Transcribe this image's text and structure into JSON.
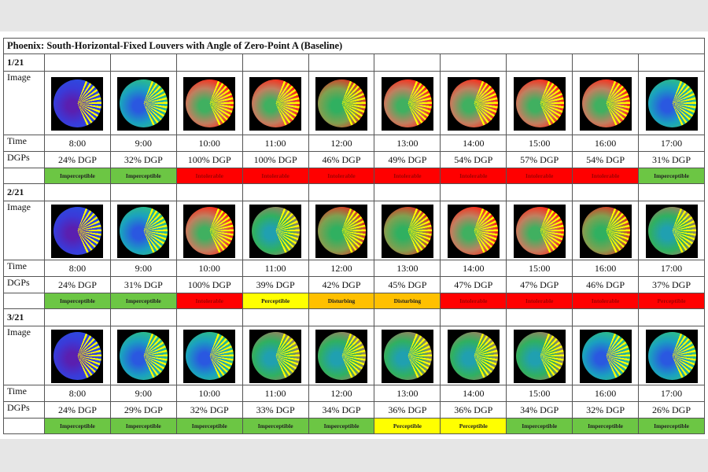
{
  "title": "Phoenix: South-Horizontal-Fixed Louvers with Angle of Zero-Point A (Baseline)",
  "row_labels": {
    "image": "Image",
    "time": "Time",
    "dgps": "DGPs"
  },
  "rating_colors": {
    "Imperceptible": "#6cc644",
    "Perceptible": "#ffff00",
    "Disturbing": "#ffc000",
    "Intolerable": "#ff0000",
    "Perceptible-red": "#ff0000"
  },
  "blocks": [
    {
      "date": "1/21",
      "times": [
        "8:00",
        "9:00",
        "10:00",
        "11:00",
        "12:00",
        "13:00",
        "14:00",
        "15:00",
        "16:00",
        "17:00"
      ],
      "dgps": [
        "24% DGP",
        "32% DGP",
        "100% DGP",
        "100% DGP",
        "46% DGP",
        "49% DGP",
        "54% DGP",
        "57% DGP",
        "54% DGP",
        "31% DGP"
      ],
      "ratings": [
        "Imperceptible",
        "Imperceptible",
        "Intolerable",
        "Intolerable",
        "Intolerable",
        "Intolerable",
        "Intolerable",
        "Intolerable",
        "Intolerable",
        "Imperceptible"
      ],
      "rating_colors": [
        "#6cc644",
        "#6cc644",
        "#ff0000",
        "#ff0000",
        "#ff0000",
        "#ff0000",
        "#ff0000",
        "#ff0000",
        "#ff0000",
        "#6cc644"
      ]
    },
    {
      "date": "2/21",
      "times": [
        "8:00",
        "9:00",
        "10:00",
        "11:00",
        "12:00",
        "13:00",
        "14:00",
        "15:00",
        "16:00",
        "17:00"
      ],
      "dgps": [
        "24% DGP",
        "31% DGP",
        "100% DGP",
        "39% DGP",
        "42% DGP",
        "45% DGP",
        "47% DGP",
        "47% DGP",
        "46% DGP",
        "37% DGP"
      ],
      "ratings": [
        "Imperceptible",
        "Imperceptible",
        "Intolerable",
        "Perceptible",
        "Disturbing",
        "Disturbing",
        "Intolerable",
        "Intolerable",
        "Intolerable",
        "Perceptible"
      ],
      "rating_colors": [
        "#6cc644",
        "#6cc644",
        "#ff0000",
        "#ffff00",
        "#ffc000",
        "#ffc000",
        "#ff0000",
        "#ff0000",
        "#ff0000",
        "#ff0000"
      ]
    },
    {
      "date": "3/21",
      "times": [
        "8:00",
        "9:00",
        "10:00",
        "11:00",
        "12:00",
        "13:00",
        "14:00",
        "15:00",
        "16:00",
        "17:00"
      ],
      "dgps": [
        "24% DGP",
        "29% DGP",
        "32% DGP",
        "33% DGP",
        "34% DGP",
        "36% DGP",
        "36% DGP",
        "34% DGP",
        "32% DGP",
        "26% DGP"
      ],
      "ratings": [
        "Imperceptible",
        "Imperceptible",
        "Imperceptible",
        "Imperceptible",
        "Imperceptible",
        "Perceptible",
        "Perceptible",
        "Imperceptible",
        "Imperceptible",
        "Imperceptible"
      ],
      "rating_colors": [
        "#6cc644",
        "#6cc644",
        "#6cc644",
        "#6cc644",
        "#6cc644",
        "#ffff00",
        "#ffff00",
        "#6cc644",
        "#6cc644",
        "#6cc644"
      ]
    }
  ]
}
